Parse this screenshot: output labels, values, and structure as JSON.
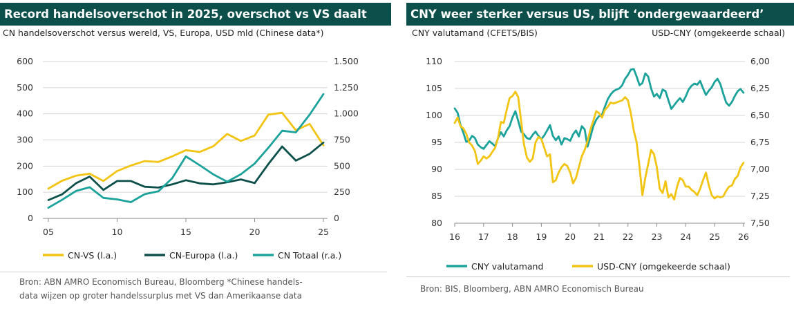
{
  "colors": {
    "dark": "#0d4f4a",
    "yellow": "#f2c413",
    "teal": "#1ba29a",
    "grid": "#d4d4d4"
  },
  "chart_data": [
    {
      "type": "line",
      "title": "Record handelsoverschot in 2025, overschot vs VS daalt",
      "subtitle": "CN handelsoverschot versus wereld, VS, Europa, USD mld (Chinese data*)",
      "source": [
        "Bron: ABN AMRO Economisch Bureau, Bloomberg *Chinese handels-",
        "data wijzen op groter handelssurplus met VS dan Amerikaanse data"
      ],
      "x": [
        2005,
        2006,
        2007,
        2008,
        2009,
        2010,
        2011,
        2012,
        2013,
        2014,
        2015,
        2016,
        2017,
        2018,
        2019,
        2020,
        2021,
        2022,
        2023,
        2024,
        2025
      ],
      "xlim": [
        2004.6,
        2025.3
      ],
      "xticks": [
        2005,
        2010,
        2015,
        2020,
        2025
      ],
      "xtick_labels": [
        "05",
        "10",
        "15",
        "20",
        "25"
      ],
      "ylim": [
        0,
        600
      ],
      "yticks": [
        0,
        100,
        200,
        300,
        400,
        500,
        600
      ],
      "ytick_labels": [
        "0",
        "100",
        "200",
        "300",
        "400",
        "500",
        "600"
      ],
      "y2lim": [
        0,
        1500
      ],
      "y2ticks": [
        0,
        250,
        500,
        750,
        1000,
        1250,
        1500
      ],
      "y2tick_labels": [
        "0",
        "250",
        "500",
        "750",
        "1.000",
        "1.250",
        "1.500"
      ],
      "series": [
        {
          "name": "CN-VS (l.a.)",
          "axis": "left",
          "color": "#f2c413",
          "values": [
            114,
            144,
            163,
            171,
            143,
            181,
            202,
            219,
            216,
            237,
            261,
            254,
            276,
            323,
            296,
            317,
            397,
            404,
            337,
            361,
            279
          ]
        },
        {
          "name": "CN-Europa (l.a.)",
          "axis": "left",
          "color": "#0d4f4a",
          "values": [
            70,
            92,
            134,
            160,
            109,
            143,
            143,
            121,
            118,
            130,
            146,
            134,
            130,
            138,
            149,
            135,
            208,
            275,
            221,
            247,
            290
          ]
        },
        {
          "name": "CN Totaal (r.a.)",
          "axis": "right",
          "color": "#1ba29a",
          "values": [
            102,
            178,
            262,
            298,
            196,
            182,
            155,
            231,
            259,
            383,
            593,
            509,
            420,
            351,
            422,
            524,
            676,
            838,
            823,
            992,
            1188
          ]
        }
      ],
      "legend": [
        "CN-VS (l.a.)",
        "CN-Europa (l.a.)",
        "CN Totaal (r.a.)"
      ]
    },
    {
      "type": "line",
      "title": "CNY weer sterker versus US, blijft ‘ondergewaardeerd’",
      "subtitle_left": "CNY valutamand (CFETS/BIS)",
      "subtitle_right": "USD-CNY (omgekeerde schaal)",
      "source": [
        "Bron: BIS, Bloomberg, ABN AMRO Economisch Bureau"
      ],
      "xlim": [
        2016,
        2026.05
      ],
      "xticks": [
        2016,
        2017,
        2018,
        2019,
        2020,
        2021,
        2022,
        2023,
        2024,
        2025,
        2026
      ],
      "xtick_labels": [
        "16",
        "17",
        "18",
        "19",
        "20",
        "21",
        "22",
        "23",
        "24",
        "25",
        "26"
      ],
      "ylim": [
        80,
        110
      ],
      "yticks": [
        80,
        85,
        90,
        95,
        100,
        105,
        110
      ],
      "ytick_labels": [
        "80",
        "85",
        "90",
        "95",
        "100",
        "105",
        "110"
      ],
      "y2lim": [
        7.5,
        6.0
      ],
      "y2ticks": [
        6.0,
        6.25,
        6.5,
        6.75,
        7.0,
        7.25,
        7.5
      ],
      "y2tick_labels": [
        "6,00",
        "6,25",
        "6,50",
        "6,75",
        "7,00",
        "7,25",
        "7,50"
      ],
      "series": [
        {
          "name": "CNY valutamand",
          "axis": "left",
          "color": "#1ba29a",
          "x": [
            2016.0,
            2016.1,
            2016.2,
            2016.3,
            2016.4,
            2016.5,
            2016.6,
            2016.7,
            2016.8,
            2016.9,
            2017.0,
            2017.1,
            2017.2,
            2017.3,
            2017.4,
            2017.5,
            2017.6,
            2017.7,
            2017.8,
            2017.9,
            2018.0,
            2018.1,
            2018.2,
            2018.3,
            2018.4,
            2018.5,
            2018.6,
            2018.7,
            2018.8,
            2018.9,
            2019.0,
            2019.1,
            2019.2,
            2019.3,
            2019.4,
            2019.5,
            2019.6,
            2019.7,
            2019.8,
            2019.9,
            2020.0,
            2020.1,
            2020.2,
            2020.3,
            2020.4,
            2020.5,
            2020.6,
            2020.7,
            2020.8,
            2020.9,
            2021.0,
            2021.1,
            2021.2,
            2021.3,
            2021.4,
            2021.5,
            2021.6,
            2021.7,
            2021.8,
            2021.9,
            2022.0,
            2022.1,
            2022.2,
            2022.3,
            2022.4,
            2022.5,
            2022.6,
            2022.7,
            2022.8,
            2022.9,
            2023.0,
            2023.1,
            2023.2,
            2023.3,
            2023.4,
            2023.5,
            2023.6,
            2023.7,
            2023.8,
            2023.9,
            2024.0,
            2024.1,
            2024.2,
            2024.3,
            2024.4,
            2024.5,
            2024.6,
            2024.7,
            2024.8,
            2024.9,
            2025.0,
            2025.1,
            2025.2,
            2025.3,
            2025.4,
            2025.5,
            2025.6,
            2025.7,
            2025.8,
            2025.9,
            2026.0
          ],
          "values": [
            101.3,
            100.5,
            98.2,
            96.8,
            95.1,
            95.3,
            96.2,
            95.8,
            94.6,
            94.1,
            93.8,
            94.5,
            95.2,
            94.8,
            94.3,
            95.8,
            96.9,
            96.1,
            97.2,
            98.0,
            99.6,
            100.8,
            99.0,
            97.0,
            96.5,
            95.8,
            95.6,
            96.4,
            97.0,
            96.2,
            95.6,
            96.3,
            97.2,
            98.2,
            96.2,
            95.4,
            96.1,
            94.6,
            95.8,
            95.6,
            95.3,
            96.5,
            97.2,
            96.1,
            98.0,
            97.4,
            94.2,
            96.0,
            98.0,
            99.2,
            99.9,
            100.1,
            101.6,
            103.0,
            103.9,
            104.5,
            104.8,
            105.0,
            105.6,
            106.8,
            107.5,
            108.5,
            108.6,
            107.2,
            105.6,
            106.0,
            107.8,
            107.2,
            105.0,
            103.5,
            104.0,
            103.2,
            104.8,
            104.5,
            102.8,
            101.2,
            101.9,
            102.6,
            103.2,
            102.5,
            103.5,
            104.8,
            105.5,
            105.9,
            105.7,
            106.4,
            105.0,
            103.8,
            104.6,
            105.2,
            106.2,
            106.8,
            105.8,
            104.0,
            102.4,
            101.8,
            102.5,
            103.6,
            104.5,
            104.9,
            104.2
          ]
        },
        {
          "name": "USD-CNY (omgekeerde schaal)",
          "axis": "right",
          "color": "#f2c413",
          "x": [
            2016.0,
            2016.1,
            2016.2,
            2016.3,
            2016.4,
            2016.5,
            2016.6,
            2016.7,
            2016.8,
            2016.9,
            2017.0,
            2017.1,
            2017.2,
            2017.3,
            2017.4,
            2017.5,
            2017.6,
            2017.7,
            2017.8,
            2017.9,
            2018.0,
            2018.1,
            2018.2,
            2018.3,
            2018.4,
            2018.5,
            2018.6,
            2018.7,
            2018.8,
            2018.9,
            2019.0,
            2019.1,
            2019.2,
            2019.3,
            2019.4,
            2019.5,
            2019.6,
            2019.7,
            2019.8,
            2019.9,
            2020.0,
            2020.1,
            2020.2,
            2020.3,
            2020.4,
            2020.5,
            2020.6,
            2020.7,
            2020.8,
            2020.9,
            2021.0,
            2021.1,
            2021.2,
            2021.3,
            2021.4,
            2021.5,
            2021.6,
            2021.7,
            2021.8,
            2021.9,
            2022.0,
            2022.1,
            2022.2,
            2022.3,
            2022.4,
            2022.5,
            2022.6,
            2022.7,
            2022.8,
            2022.9,
            2023.0,
            2023.1,
            2023.2,
            2023.3,
            2023.4,
            2023.5,
            2023.6,
            2023.7,
            2023.8,
            2023.9,
            2024.0,
            2024.1,
            2024.2,
            2024.3,
            2024.4,
            2024.5,
            2024.6,
            2024.7,
            2024.8,
            2024.9,
            2025.0,
            2025.1,
            2025.2,
            2025.3,
            2025.4,
            2025.5,
            2025.6,
            2025.7,
            2025.8,
            2025.9,
            2026.0
          ],
          "values": [
            6.57,
            6.52,
            6.6,
            6.62,
            6.67,
            6.75,
            6.78,
            6.83,
            6.95,
            6.92,
            6.88,
            6.9,
            6.88,
            6.84,
            6.8,
            6.71,
            6.56,
            6.57,
            6.45,
            6.34,
            6.32,
            6.28,
            6.33,
            6.55,
            6.77,
            6.89,
            6.93,
            6.9,
            6.75,
            6.7,
            6.72,
            6.8,
            6.88,
            6.86,
            7.12,
            7.1,
            7.03,
            6.98,
            6.95,
            6.97,
            7.03,
            7.13,
            7.08,
            6.98,
            6.88,
            6.82,
            6.74,
            6.63,
            6.55,
            6.46,
            6.48,
            6.52,
            6.45,
            6.42,
            6.38,
            6.39,
            6.38,
            6.37,
            6.36,
            6.33,
            6.36,
            6.48,
            6.64,
            6.75,
            6.98,
            7.24,
            7.08,
            6.95,
            6.82,
            6.86,
            6.98,
            7.18,
            7.22,
            7.11,
            7.26,
            7.23,
            7.28,
            7.16,
            7.08,
            7.1,
            7.16,
            7.16,
            7.19,
            7.21,
            7.24,
            7.18,
            7.1,
            7.03,
            7.15,
            7.24,
            7.27,
            7.25,
            7.26,
            7.25,
            7.2,
            7.16,
            7.15,
            7.09,
            7.06,
            6.98,
            6.94
          ]
        }
      ],
      "legend": [
        "CNY valutamand",
        "USD-CNY (omgekeerde schaal)"
      ]
    }
  ]
}
